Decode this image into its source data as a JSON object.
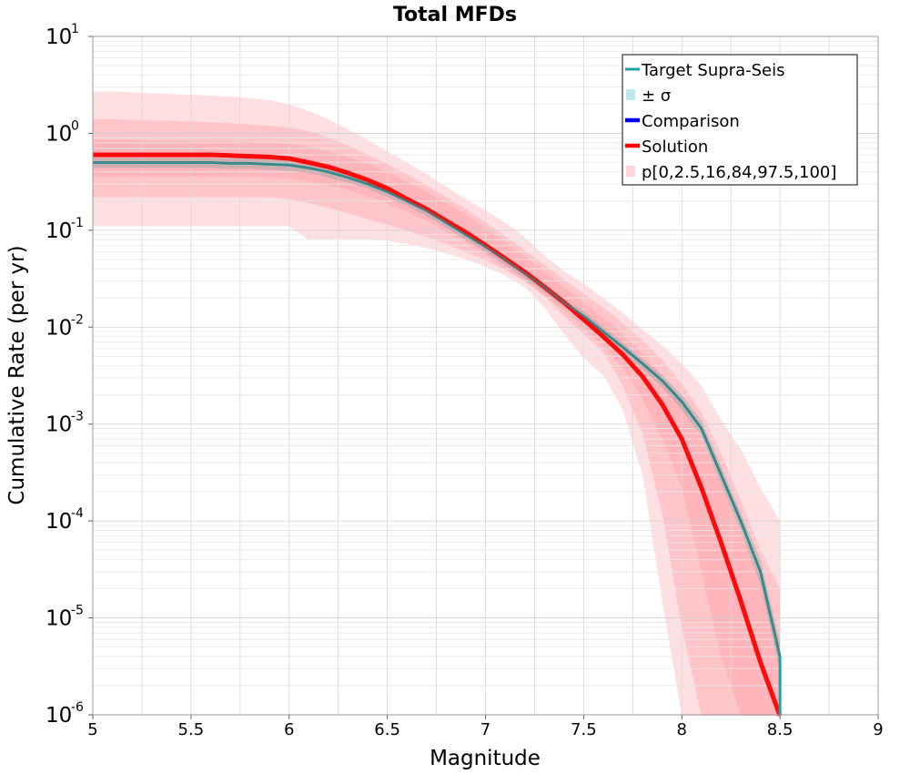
{
  "chart_data": {
    "type": "line",
    "title": "Total MFDs",
    "xlabel": "Magnitude",
    "ylabel": "Cumulative Rate (per yr)",
    "xlim": [
      5,
      9
    ],
    "ylim": [
      1e-06,
      10
    ],
    "yscale": "log",
    "grid": true,
    "legend_position": "top-right",
    "x_ticks": [
      "5",
      "5.5",
      "6",
      "6.5",
      "7",
      "7.5",
      "8",
      "8.5",
      "9"
    ],
    "x_tick_values": [
      5,
      5.5,
      6,
      6.5,
      7,
      7.5,
      8,
      8.5,
      9
    ],
    "y_ticks": [
      {
        "base": "10",
        "exp": "-6",
        "value": 1e-06
      },
      {
        "base": "10",
        "exp": "-5",
        "value": 1e-05
      },
      {
        "base": "10",
        "exp": "-4",
        "value": 0.0001
      },
      {
        "base": "10",
        "exp": "-3",
        "value": 0.001
      },
      {
        "base": "10",
        "exp": "-2",
        "value": 0.01
      },
      {
        "base": "10",
        "exp": "-1",
        "value": 0.1
      },
      {
        "base": "10",
        "exp": "0",
        "value": 1
      },
      {
        "base": "10",
        "exp": "1",
        "value": 10
      }
    ],
    "legend": [
      {
        "label": "Target Supra-Seis",
        "color": "#1aa6a6",
        "kind": "line"
      },
      {
        "label": "± σ",
        "color": "#bfe9ee",
        "kind": "box"
      },
      {
        "label": "Comparison",
        "color": "#0000ff",
        "kind": "line"
      },
      {
        "label": "Solution",
        "color": "#ff0000",
        "kind": "line"
      },
      {
        "label": "p[0,2.5,16,84,97.5,100]",
        "color": "#ffd6d6",
        "kind": "box"
      }
    ],
    "x": [
      5.0,
      5.1,
      5.2,
      5.3,
      5.4,
      5.5,
      5.6,
      5.7,
      5.8,
      5.9,
      6.0,
      6.1,
      6.2,
      6.3,
      6.4,
      6.5,
      6.6,
      6.7,
      6.8,
      6.9,
      7.0,
      7.1,
      7.2,
      7.3,
      7.4,
      7.5,
      7.6,
      7.7,
      7.8,
      7.9,
      8.0,
      8.1,
      8.2,
      8.3,
      8.4,
      8.5
    ],
    "series": [
      {
        "name": "Target Supra-Seis",
        "color": "#1aa6a6",
        "values": [
          0.5,
          0.5,
          0.5,
          0.5,
          0.5,
          0.5,
          0.5,
          0.49,
          0.49,
          0.48,
          0.47,
          0.44,
          0.4,
          0.35,
          0.3,
          0.25,
          0.2,
          0.16,
          0.12,
          0.09,
          0.068,
          0.05,
          0.036,
          0.026,
          0.018,
          0.013,
          0.009,
          0.0062,
          0.0042,
          0.0028,
          0.0017,
          0.0009,
          0.0003,
          0.0001,
          3e-05,
          4e-06
        ]
      },
      {
        "name": "Solution",
        "color": "#ff0000",
        "values": [
          0.6,
          0.6,
          0.6,
          0.6,
          0.6,
          0.6,
          0.6,
          0.59,
          0.58,
          0.57,
          0.55,
          0.5,
          0.45,
          0.39,
          0.33,
          0.27,
          0.21,
          0.165,
          0.125,
          0.095,
          0.07,
          0.051,
          0.037,
          0.026,
          0.018,
          0.012,
          0.008,
          0.0052,
          0.0031,
          0.0016,
          0.0007,
          0.00022,
          6e-05,
          1.5e-05,
          3.5e-06,
          5e-07
        ]
      }
    ],
    "sigma_band": {
      "lower": [
        0.44,
        0.44,
        0.44,
        0.44,
        0.44,
        0.44,
        0.44,
        0.43,
        0.43,
        0.42,
        0.41,
        0.39,
        0.35,
        0.31,
        0.27,
        0.22,
        0.18,
        0.14,
        0.107,
        0.08,
        0.06,
        0.044,
        0.032,
        0.023,
        0.016,
        0.0114,
        0.0079,
        0.0055,
        0.0037,
        0.0024,
        0.0014,
        0.00075,
        0.00024,
        8e-05,
        2.2e-05,
        2.8e-06
      ],
      "upper": [
        0.56,
        0.56,
        0.56,
        0.56,
        0.56,
        0.56,
        0.56,
        0.55,
        0.55,
        0.54,
        0.53,
        0.5,
        0.45,
        0.39,
        0.33,
        0.28,
        0.22,
        0.18,
        0.135,
        0.1,
        0.076,
        0.056,
        0.04,
        0.029,
        0.02,
        0.0146,
        0.0101,
        0.0069,
        0.0047,
        0.0032,
        0.002,
        0.00108,
        0.00037,
        0.00012,
        4e-05,
        5.5e-06
      ]
    },
    "percentile_bands": [
      {
        "name": "p0-p100",
        "lower": [
          0.11,
          0.11,
          0.11,
          0.11,
          0.11,
          0.11,
          0.11,
          0.11,
          0.11,
          0.11,
          0.11,
          0.08,
          0.08,
          0.08,
          0.08,
          0.078,
          0.072,
          0.066,
          0.058,
          0.05,
          0.042,
          0.034,
          0.026,
          0.016,
          0.0085,
          0.0048,
          0.0032,
          0.0014,
          0.0003,
          1.5e-05,
          9e-07,
          9e-07,
          9e-07,
          9e-07,
          9e-07,
          9e-07
        ],
        "upper": [
          2.7,
          2.7,
          2.65,
          2.6,
          2.55,
          2.5,
          2.45,
          2.4,
          2.3,
          2.2,
          2.0,
          1.7,
          1.4,
          1.1,
          0.85,
          0.65,
          0.5,
          0.38,
          0.28,
          0.21,
          0.16,
          0.12,
          0.085,
          0.055,
          0.038,
          0.028,
          0.02,
          0.014,
          0.0095,
          0.0065,
          0.0042,
          0.0025,
          0.0011,
          0.00055,
          0.00022,
          0.0001
        ]
      },
      {
        "name": "p2.5-p97.5",
        "lower": [
          0.22,
          0.22,
          0.22,
          0.22,
          0.22,
          0.22,
          0.22,
          0.22,
          0.22,
          0.22,
          0.21,
          0.19,
          0.17,
          0.15,
          0.13,
          0.115,
          0.1,
          0.085,
          0.072,
          0.06,
          0.049,
          0.039,
          0.03,
          0.021,
          0.013,
          0.0085,
          0.0055,
          0.0025,
          0.0008,
          0.00012,
          8e-06,
          9e-07,
          9e-07,
          9e-07,
          9e-07,
          9e-07
        ],
        "upper": [
          1.4,
          1.4,
          1.38,
          1.36,
          1.34,
          1.32,
          1.3,
          1.27,
          1.24,
          1.2,
          1.15,
          1.05,
          0.9,
          0.75,
          0.6,
          0.48,
          0.38,
          0.29,
          0.22,
          0.165,
          0.12,
          0.087,
          0.062,
          0.044,
          0.031,
          0.022,
          0.016,
          0.011,
          0.0073,
          0.0046,
          0.0026,
          0.0013,
          0.0005,
          0.00016,
          5e-05,
          2e-05
        ]
      },
      {
        "name": "p16-p84",
        "lower": [
          0.36,
          0.36,
          0.36,
          0.36,
          0.36,
          0.36,
          0.36,
          0.36,
          0.36,
          0.35,
          0.34,
          0.32,
          0.29,
          0.26,
          0.225,
          0.19,
          0.155,
          0.125,
          0.097,
          0.074,
          0.056,
          0.041,
          0.03,
          0.021,
          0.015,
          0.0098,
          0.0063,
          0.0038,
          0.0018,
          0.0007,
          0.00022,
          3e-05,
          4e-06,
          9e-07,
          9e-07,
          9e-07
        ],
        "upper": [
          0.85,
          0.85,
          0.85,
          0.84,
          0.84,
          0.83,
          0.83,
          0.82,
          0.81,
          0.8,
          0.78,
          0.72,
          0.65,
          0.57,
          0.49,
          0.4,
          0.32,
          0.25,
          0.19,
          0.145,
          0.105,
          0.076,
          0.054,
          0.038,
          0.026,
          0.018,
          0.0125,
          0.0085,
          0.0054,
          0.0032,
          0.0017,
          0.0007,
          0.00025,
          8e-05,
          2.5e-05,
          6e-06
        ]
      }
    ]
  }
}
